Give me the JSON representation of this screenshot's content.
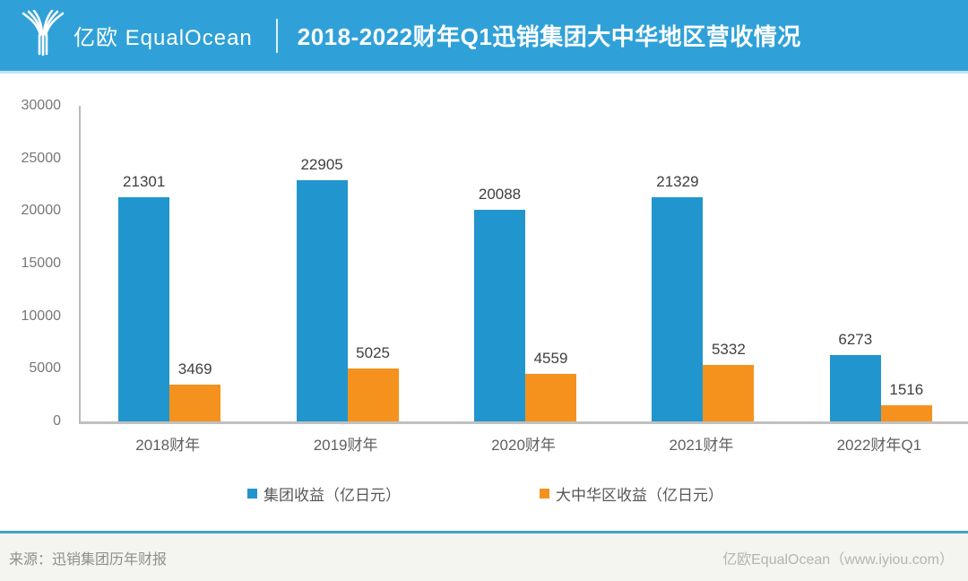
{
  "header": {
    "brand": "亿欧 EqualOcean",
    "title": "2018-2022财年Q1迅销集团大中华地区营收情况",
    "bg_color": "#2FA1D8",
    "text_color": "#FFFFFF"
  },
  "chart_data": {
    "type": "bar",
    "title": "2018-2022财年Q1迅销集团大中华地区营收情况",
    "categories": [
      "2018财年",
      "2019财年",
      "2020财年",
      "2021财年",
      "2022财年Q1"
    ],
    "series": [
      {
        "name": "集团收益（亿日元）",
        "color": "#2196CE",
        "values": [
          21301,
          22905,
          20088,
          21329,
          6273
        ]
      },
      {
        "name": "大中华区收益（亿日元）",
        "color": "#F5921E",
        "values": [
          3469,
          5025,
          4559,
          5332,
          1516
        ]
      }
    ],
    "xlabel": "",
    "ylabel": "",
    "ylim": [
      0,
      30000
    ],
    "ytick_step": 5000,
    "ytick_labels": [
      "0",
      "5000",
      "10000",
      "15000",
      "20000",
      "25000",
      "30000"
    ],
    "grid": false,
    "legend_position": "bottom",
    "value_labels_shown": true
  },
  "footer": {
    "source": "来源：迅销集团历年财报",
    "credit": "亿欧EqualOcean（www.iyiou.com）"
  },
  "colors": {
    "header_bg": "#2FA1D8",
    "header_strip": "#C2E4F4",
    "series_blue": "#2196CE",
    "series_orange": "#F5921E",
    "axis_line": "#C0C0C0",
    "tick_text": "#777777",
    "value_text": "#3F3F3F",
    "divider": "#43A2C9",
    "footer_bg": "#F4F4F1"
  }
}
